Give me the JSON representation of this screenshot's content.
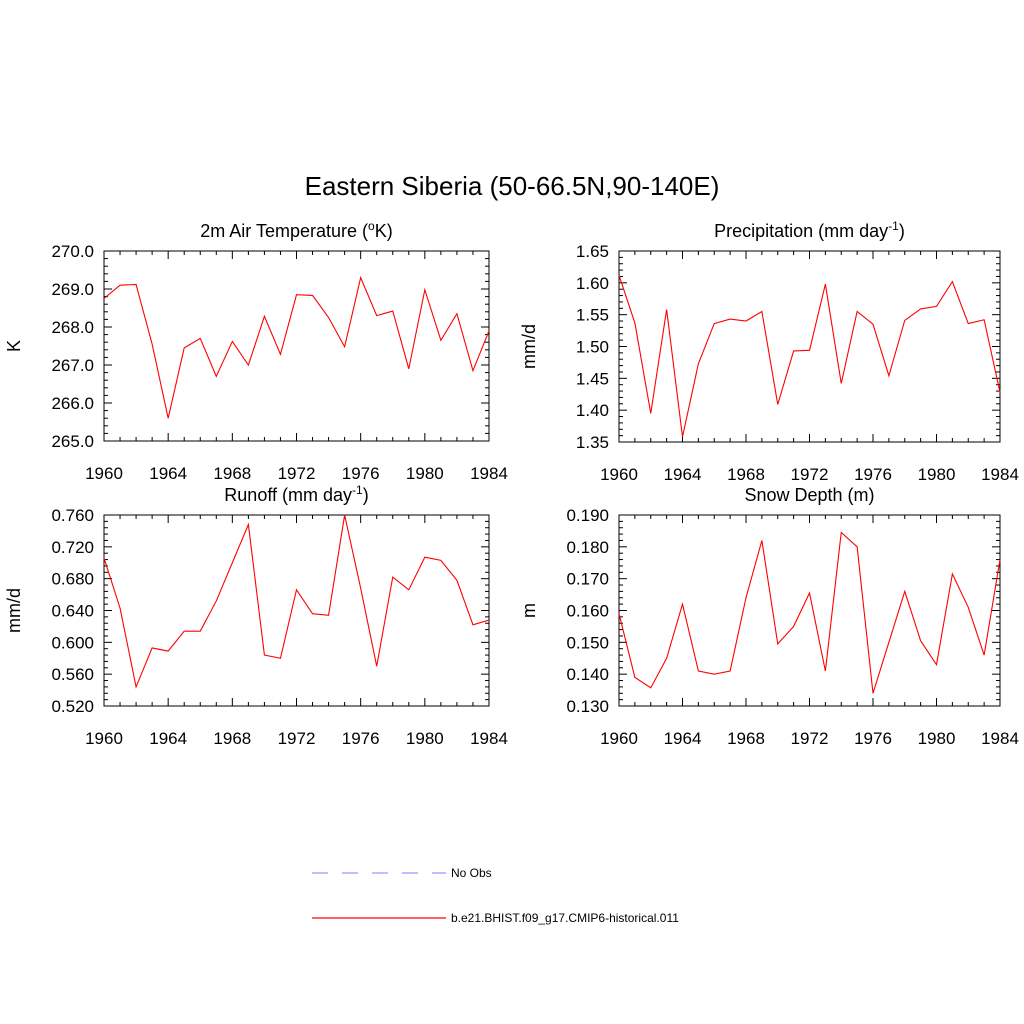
{
  "figure": {
    "title": "Eastern Siberia (50-66.5N,90-140E)"
  },
  "colors": {
    "model_line": "#ff0000",
    "obs_line": "#9999ff",
    "axis": "#000000"
  },
  "legend": {
    "placement": "bottom-center",
    "entries": [
      {
        "label": "No Obs",
        "style": "dashed",
        "color": "#9999ff"
      },
      {
        "label": "b.e21.BHIST.f09_g17.CMIP6-historical.011",
        "style": "solid",
        "color": "#ff0000"
      }
    ]
  },
  "chart_data": [
    {
      "type": "line",
      "title": "2m Air Temperature (",
      "title_sup": "o",
      "title_tail": "K)",
      "ylabel": "K",
      "xlim": [
        1960,
        1984
      ],
      "ylim": [
        265.0,
        270.0
      ],
      "xticks": [
        1960,
        1964,
        1968,
        1972,
        1976,
        1980,
        1984
      ],
      "yticks": [
        265.0,
        266.0,
        267.0,
        268.0,
        269.0,
        270.0
      ],
      "ytick_labels": [
        "265.0",
        "266.0",
        "267.0",
        "268.0",
        "269.0",
        "270.0"
      ],
      "series": [
        {
          "x": [
            1960,
            1961,
            1962,
            1963,
            1964,
            1965,
            1966,
            1967,
            1968,
            1969,
            1970,
            1971,
            1972,
            1973,
            1974,
            1975,
            1976,
            1977,
            1978,
            1979,
            1980,
            1981,
            1982,
            1983,
            1984
          ],
          "values": [
            268.75,
            269.1,
            269.12,
            267.55,
            265.6,
            267.45,
            267.7,
            266.7,
            267.62,
            267.0,
            268.28,
            267.28,
            268.85,
            268.83,
            268.25,
            267.48,
            269.3,
            268.3,
            268.42,
            266.9,
            268.98,
            267.65,
            268.35,
            266.85,
            267.9
          ]
        }
      ]
    },
    {
      "type": "line",
      "title": "Precipitation (mm day",
      "title_sup": "-1",
      "title_tail": ")",
      "ylabel": "mm/d",
      "xlim": [
        1960,
        1984
      ],
      "ylim": [
        1.35,
        1.65
      ],
      "xticks": [
        1960,
        1964,
        1968,
        1972,
        1976,
        1980,
        1984
      ],
      "yticks": [
        1.35,
        1.4,
        1.45,
        1.5,
        1.55,
        1.6,
        1.65
      ],
      "ytick_labels": [
        "1.35",
        "1.40",
        "1.45",
        "1.50",
        "1.55",
        "1.60",
        "1.65"
      ],
      "series": [
        {
          "x": [
            1960,
            1961,
            1962,
            1963,
            1964,
            1965,
            1966,
            1967,
            1968,
            1969,
            1970,
            1971,
            1972,
            1973,
            1974,
            1975,
            1976,
            1977,
            1978,
            1979,
            1980,
            1981,
            1982,
            1983,
            1984
          ],
          "values": [
            1.612,
            1.537,
            1.395,
            1.558,
            1.358,
            1.473,
            1.536,
            1.543,
            1.54,
            1.555,
            1.409,
            1.493,
            1.494,
            1.598,
            1.442,
            1.555,
            1.535,
            1.454,
            1.541,
            1.559,
            1.563,
            1.602,
            1.536,
            1.542,
            1.428
          ]
        }
      ]
    },
    {
      "type": "line",
      "title": "Runoff (mm day",
      "title_sup": "-1",
      "title_tail": ")",
      "ylabel": "mm/d",
      "xlim": [
        1960,
        1984
      ],
      "ylim": [
        0.52,
        0.76
      ],
      "xticks": [
        1960,
        1964,
        1968,
        1972,
        1976,
        1980,
        1984
      ],
      "yticks": [
        0.52,
        0.56,
        0.6,
        0.64,
        0.68,
        0.72,
        0.76
      ],
      "ytick_labels": [
        "0.520",
        "0.560",
        "0.600",
        "0.640",
        "0.680",
        "0.720",
        "0.760"
      ],
      "series": [
        {
          "x": [
            1960,
            1961,
            1962,
            1963,
            1964,
            1965,
            1966,
            1967,
            1968,
            1969,
            1970,
            1971,
            1972,
            1973,
            1974,
            1975,
            1976,
            1977,
            1978,
            1979,
            1980,
            1981,
            1982,
            1983,
            1984
          ],
          "values": [
            0.706,
            0.643,
            0.544,
            0.593,
            0.589,
            0.614,
            0.614,
            0.652,
            0.7,
            0.748,
            0.584,
            0.58,
            0.666,
            0.636,
            0.634,
            0.76,
            0.668,
            0.57,
            0.682,
            0.666,
            0.707,
            0.703,
            0.678,
            0.622,
            0.628
          ]
        }
      ]
    },
    {
      "type": "line",
      "title": "Snow Depth (m)",
      "title_sup": "",
      "title_tail": "",
      "ylabel": "m",
      "xlim": [
        1960,
        1984
      ],
      "ylim": [
        0.13,
        0.19
      ],
      "xticks": [
        1960,
        1964,
        1968,
        1972,
        1976,
        1980,
        1984
      ],
      "yticks": [
        0.13,
        0.14,
        0.15,
        0.16,
        0.17,
        0.18,
        0.19
      ],
      "ytick_labels": [
        "0.130",
        "0.140",
        "0.150",
        "0.160",
        "0.170",
        "0.180",
        "0.190"
      ],
      "series": [
        {
          "x": [
            1960,
            1961,
            1962,
            1963,
            1964,
            1965,
            1966,
            1967,
            1968,
            1969,
            1970,
            1971,
            1972,
            1973,
            1974,
            1975,
            1976,
            1977,
            1978,
            1979,
            1980,
            1981,
            1982,
            1983,
            1984
          ],
          "values": [
            0.159,
            0.139,
            0.1357,
            0.145,
            0.162,
            0.141,
            0.14,
            0.141,
            0.164,
            0.182,
            0.1495,
            0.155,
            0.1655,
            0.141,
            0.1845,
            0.18,
            0.134,
            0.15,
            0.166,
            0.1505,
            0.143,
            0.1715,
            0.161,
            0.146,
            0.176
          ]
        }
      ]
    }
  ]
}
